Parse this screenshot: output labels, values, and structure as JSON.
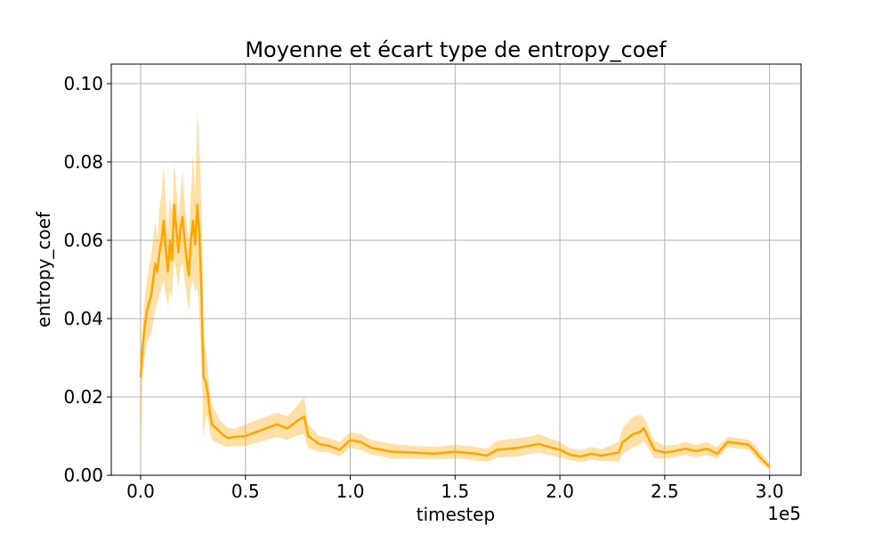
{
  "chart_data": {
    "type": "line",
    "title": "Moyenne et écart type de entropy_coef",
    "xlabel": "timestep",
    "ylabel": "entropy_coef",
    "x_offset_label": "1e5",
    "xlim": [
      -0.14,
      3.15
    ],
    "ylim": [
      0.0,
      0.105
    ],
    "x_ticks": [
      0.0,
      0.5,
      1.0,
      1.5,
      2.0,
      2.5,
      3.0
    ],
    "x_tick_labels": [
      "0.0",
      "0.5",
      "1.0",
      "1.5",
      "2.0",
      "2.5",
      "3.0"
    ],
    "y_ticks": [
      0.0,
      0.02,
      0.04,
      0.06,
      0.08,
      0.1
    ],
    "y_tick_labels": [
      "0.00",
      "0.02",
      "0.04",
      "0.06",
      "0.08",
      "0.10"
    ],
    "grid": true,
    "legend": "none",
    "colors": {
      "line": "#ffa500",
      "band": "#ffa500",
      "grid": "#b0b0b0"
    },
    "series": [
      {
        "x": [
          0.0,
          0.01,
          0.02,
          0.03,
          0.05,
          0.07,
          0.08,
          0.09,
          0.1,
          0.11,
          0.12,
          0.13,
          0.14,
          0.15,
          0.16,
          0.17,
          0.18,
          0.19,
          0.2,
          0.21,
          0.22,
          0.23,
          0.24,
          0.25,
          0.26,
          0.27,
          0.28,
          0.29,
          0.3,
          0.31,
          0.32,
          0.33,
          0.34,
          0.36,
          0.38,
          0.4,
          0.42,
          0.45,
          0.5,
          0.55,
          0.6,
          0.65,
          0.7,
          0.75,
          0.78,
          0.8,
          0.85,
          0.9,
          0.95,
          1.0,
          1.05,
          1.1,
          1.15,
          1.2,
          1.3,
          1.4,
          1.5,
          1.6,
          1.65,
          1.7,
          1.8,
          1.85,
          1.9,
          1.95,
          2.0,
          2.05,
          2.1,
          2.15,
          2.2,
          2.25,
          2.28,
          2.3,
          2.35,
          2.38,
          2.4,
          2.45,
          2.5,
          2.55,
          2.6,
          2.65,
          2.7,
          2.75,
          2.8,
          2.85,
          2.9,
          2.93,
          2.95,
          2.98,
          3.0
        ],
        "mean": [
          0.025,
          0.033,
          0.038,
          0.042,
          0.046,
          0.054,
          0.052,
          0.057,
          0.06,
          0.065,
          0.058,
          0.052,
          0.06,
          0.055,
          0.069,
          0.063,
          0.057,
          0.063,
          0.066,
          0.06,
          0.055,
          0.051,
          0.06,
          0.065,
          0.059,
          0.069,
          0.062,
          0.048,
          0.025,
          0.024,
          0.021,
          0.016,
          0.013,
          0.012,
          0.011,
          0.01,
          0.0095,
          0.0098,
          0.01,
          0.011,
          0.012,
          0.013,
          0.012,
          0.014,
          0.015,
          0.01,
          0.008,
          0.0075,
          0.0065,
          0.009,
          0.0085,
          0.007,
          0.0065,
          0.006,
          0.0058,
          0.0055,
          0.006,
          0.0055,
          0.005,
          0.0065,
          0.007,
          0.0075,
          0.008,
          0.0072,
          0.0065,
          0.0052,
          0.0048,
          0.0055,
          0.005,
          0.0055,
          0.0058,
          0.0085,
          0.0105,
          0.011,
          0.012,
          0.0065,
          0.0058,
          0.0062,
          0.0068,
          0.0062,
          0.0068,
          0.0055,
          0.0085,
          0.0082,
          0.0078,
          0.0062,
          0.0048,
          0.0032,
          0.0022
        ],
        "upper": [
          0.03,
          0.038,
          0.045,
          0.05,
          0.056,
          0.065,
          0.06,
          0.068,
          0.072,
          0.079,
          0.07,
          0.062,
          0.072,
          0.066,
          0.08,
          0.074,
          0.066,
          0.072,
          0.078,
          0.07,
          0.064,
          0.06,
          0.072,
          0.082,
          0.072,
          0.093,
          0.085,
          0.07,
          0.035,
          0.032,
          0.028,
          0.021,
          0.018,
          0.016,
          0.014,
          0.013,
          0.012,
          0.012,
          0.013,
          0.014,
          0.015,
          0.016,
          0.015,
          0.018,
          0.02,
          0.013,
          0.01,
          0.0095,
          0.0085,
          0.011,
          0.0105,
          0.009,
          0.0085,
          0.008,
          0.0075,
          0.0072,
          0.0078,
          0.0072,
          0.0068,
          0.0088,
          0.0095,
          0.0098,
          0.0105,
          0.0095,
          0.0085,
          0.0068,
          0.0064,
          0.0072,
          0.0066,
          0.0078,
          0.0085,
          0.0122,
          0.015,
          0.0155,
          0.0148,
          0.0088,
          0.0075,
          0.0078,
          0.0085,
          0.0078,
          0.0085,
          0.0072,
          0.0098,
          0.0095,
          0.009,
          0.0078,
          0.0064,
          0.0045,
          0.003
        ],
        "lower": [
          0.005,
          0.026,
          0.03,
          0.034,
          0.036,
          0.042,
          0.044,
          0.046,
          0.048,
          0.05,
          0.046,
          0.043,
          0.047,
          0.045,
          0.056,
          0.052,
          0.048,
          0.053,
          0.054,
          0.05,
          0.046,
          0.042,
          0.048,
          0.05,
          0.047,
          0.048,
          0.042,
          0.03,
          0.009,
          0.015,
          0.015,
          0.011,
          0.009,
          0.0085,
          0.008,
          0.0075,
          0.0072,
          0.0075,
          0.0075,
          0.0082,
          0.009,
          0.0098,
          0.009,
          0.0102,
          0.0105,
          0.007,
          0.006,
          0.0058,
          0.0048,
          0.007,
          0.0065,
          0.0052,
          0.0048,
          0.0042,
          0.0042,
          0.004,
          0.0044,
          0.0038,
          0.0034,
          0.0045,
          0.0048,
          0.0054,
          0.0058,
          0.0052,
          0.0046,
          0.0038,
          0.0034,
          0.004,
          0.0036,
          0.0036,
          0.0034,
          0.0055,
          0.0072,
          0.0078,
          0.0088,
          0.0045,
          0.0042,
          0.0046,
          0.0052,
          0.0046,
          0.0052,
          0.0042,
          0.0072,
          0.0068,
          0.0065,
          0.0048,
          0.0034,
          0.0022,
          0.0015
        ]
      }
    ]
  }
}
